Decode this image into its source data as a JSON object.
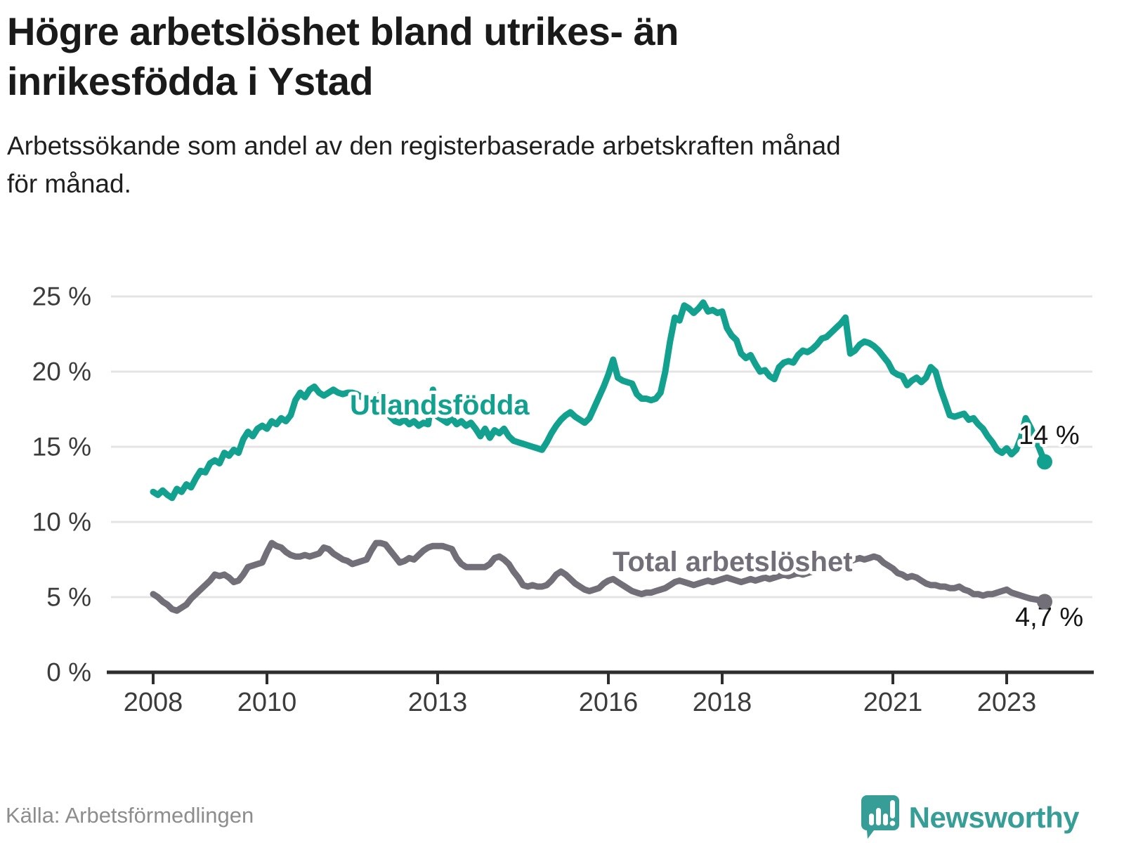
{
  "title": {
    "line1": "Högre arbetslöshet bland utrikes- än",
    "line2": "inrikesfödda i Ystad"
  },
  "subtitle": {
    "line1": "Arbetssökande som andel av den registerbaserade arbetskraften månad",
    "line2": "för månad."
  },
  "source": "Källa: Arbetsförmedlingen",
  "logo": {
    "wordmark": "Newsworthy",
    "icon": "bar-chart-speech-bubble-icon"
  },
  "colors": {
    "foreign_born_line": "#12A08F",
    "total_line": "#736F78",
    "title_text": "#1a1a1a",
    "axis_text": "#3c3c3c",
    "gridline": "#e4e4e4",
    "axis_line": "#2e2e2e",
    "end_label_text": "#151515",
    "source_text": "#8d8d8d",
    "logo_teal": "#369E96"
  },
  "chart_data": {
    "type": "line",
    "frequency": "monthly",
    "x_start": "2008-01",
    "x_end": "2023-09",
    "ylim": [
      0,
      26.5
    ],
    "grid": "horizontal",
    "legend_position": "inline-labels",
    "y_ticks": [
      {
        "value": 0,
        "label": "0 %"
      },
      {
        "value": 5,
        "label": "5 %"
      },
      {
        "value": 10,
        "label": "10 %"
      },
      {
        "value": 15,
        "label": "15 %"
      },
      {
        "value": 20,
        "label": "20 %"
      },
      {
        "value": 25,
        "label": "25 %"
      }
    ],
    "x_ticks": [
      {
        "year": 2008,
        "label": "2008"
      },
      {
        "year": 2010,
        "label": "2010"
      },
      {
        "year": 2013,
        "label": "2013"
      },
      {
        "year": 2016,
        "label": "2016"
      },
      {
        "year": 2018,
        "label": "2018"
      },
      {
        "year": 2021,
        "label": "2021"
      },
      {
        "year": 2023,
        "label": "2023"
      }
    ],
    "series": [
      {
        "name": "Utlandsfödda",
        "color": "#12A08F",
        "end_label": "14 %",
        "end_value": 14.0,
        "values": [
          12.0,
          11.8,
          12.1,
          11.8,
          11.6,
          12.2,
          12.0,
          12.5,
          12.3,
          12.9,
          13.4,
          13.3,
          13.9,
          14.1,
          13.9,
          14.6,
          14.4,
          14.8,
          14.6,
          15.5,
          16.0,
          15.7,
          16.2,
          16.4,
          16.2,
          16.7,
          16.5,
          16.9,
          16.7,
          17.1,
          18.1,
          18.6,
          18.3,
          18.8,
          19.0,
          18.6,
          18.4,
          18.6,
          18.8,
          18.6,
          18.5,
          18.6,
          18.6,
          18.5,
          18.3,
          18.4,
          18.2,
          18.3,
          18.5,
          18.3,
          17.0,
          16.7,
          16.6,
          16.8,
          16.5,
          16.7,
          16.4,
          16.6,
          16.5,
          18.8,
          17.0,
          16.8,
          16.6,
          16.9,
          16.5,
          16.7,
          16.4,
          16.6,
          16.2,
          15.7,
          16.2,
          15.6,
          16.1,
          15.9,
          16.2,
          15.7,
          15.4,
          15.3,
          15.2,
          15.1,
          15.0,
          14.9,
          14.8,
          15.3,
          15.9,
          16.4,
          16.8,
          17.1,
          17.3,
          17.0,
          16.8,
          16.6,
          16.9,
          17.6,
          18.3,
          19.0,
          19.8,
          20.8,
          19.6,
          19.4,
          19.3,
          19.2,
          18.5,
          18.2,
          18.2,
          18.1,
          18.2,
          18.6,
          20.0,
          22.0,
          23.6,
          23.4,
          24.4,
          24.2,
          23.9,
          24.2,
          24.6,
          24.0,
          24.1,
          23.9,
          24.0,
          22.9,
          22.4,
          22.1,
          21.2,
          20.9,
          21.1,
          20.5,
          20.0,
          20.1,
          19.7,
          19.5,
          20.3,
          20.6,
          20.7,
          20.6,
          21.1,
          21.4,
          21.3,
          21.5,
          21.8,
          22.2,
          22.3,
          22.6,
          22.9,
          23.2,
          23.6,
          21.2,
          21.4,
          21.8,
          22.0,
          21.9,
          21.7,
          21.4,
          21.0,
          20.6,
          20.0,
          19.8,
          19.7,
          19.1,
          19.4,
          19.6,
          19.3,
          19.6,
          20.3,
          20.0,
          18.9,
          18.0,
          17.1,
          17.0,
          17.1,
          17.2,
          16.8,
          16.9,
          16.5,
          16.2,
          15.7,
          15.3,
          14.8,
          14.6,
          14.9,
          14.5,
          14.8,
          15.6,
          16.9,
          16.3,
          15.6,
          14.8,
          14.0
        ]
      },
      {
        "name": "Total arbetslöshet",
        "color": "#736F78",
        "end_label": "4,7 %",
        "end_value": 4.7,
        "values": [
          5.2,
          5.0,
          4.7,
          4.5,
          4.2,
          4.1,
          4.3,
          4.5,
          4.9,
          5.2,
          5.5,
          5.8,
          6.1,
          6.5,
          6.4,
          6.5,
          6.3,
          6.0,
          6.1,
          6.5,
          7.0,
          7.1,
          7.2,
          7.3,
          8.0,
          8.6,
          8.4,
          8.3,
          8.0,
          7.8,
          7.7,
          7.7,
          7.8,
          7.7,
          7.8,
          7.9,
          8.3,
          8.2,
          7.9,
          7.7,
          7.5,
          7.4,
          7.2,
          7.3,
          7.4,
          7.5,
          8.1,
          8.6,
          8.6,
          8.5,
          8.1,
          7.7,
          7.3,
          7.4,
          7.6,
          7.5,
          7.8,
          8.1,
          8.3,
          8.4,
          8.4,
          8.4,
          8.3,
          8.2,
          7.6,
          7.2,
          7.0,
          7.0,
          7.0,
          7.0,
          7.0,
          7.2,
          7.6,
          7.7,
          7.5,
          7.2,
          6.7,
          6.3,
          5.8,
          5.7,
          5.8,
          5.7,
          5.7,
          5.8,
          6.1,
          6.5,
          6.7,
          6.5,
          6.2,
          5.9,
          5.7,
          5.5,
          5.4,
          5.5,
          5.6,
          5.9,
          6.1,
          6.2,
          6.0,
          5.8,
          5.6,
          5.4,
          5.3,
          5.2,
          5.3,
          5.3,
          5.4,
          5.5,
          5.6,
          5.8,
          6.0,
          6.1,
          6.0,
          5.9,
          5.8,
          5.9,
          6.0,
          6.1,
          6.0,
          6.1,
          6.2,
          6.3,
          6.2,
          6.1,
          6.0,
          6.1,
          6.2,
          6.1,
          6.2,
          6.3,
          6.2,
          6.3,
          6.4,
          6.5,
          6.4,
          6.5,
          6.6,
          6.5,
          6.6,
          6.7,
          6.8,
          6.9,
          7.0,
          7.1,
          7.0,
          7.1,
          7.3,
          7.4,
          7.5,
          7.6,
          7.5,
          7.6,
          7.7,
          7.6,
          7.3,
          7.1,
          6.9,
          6.6,
          6.5,
          6.3,
          6.4,
          6.3,
          6.1,
          5.9,
          5.8,
          5.8,
          5.7,
          5.7,
          5.6,
          5.6,
          5.7,
          5.5,
          5.4,
          5.2,
          5.2,
          5.1,
          5.2,
          5.2,
          5.3,
          5.4,
          5.5,
          5.3,
          5.2,
          5.1,
          5.0,
          4.9,
          4.85,
          4.8,
          4.7
        ]
      }
    ]
  }
}
